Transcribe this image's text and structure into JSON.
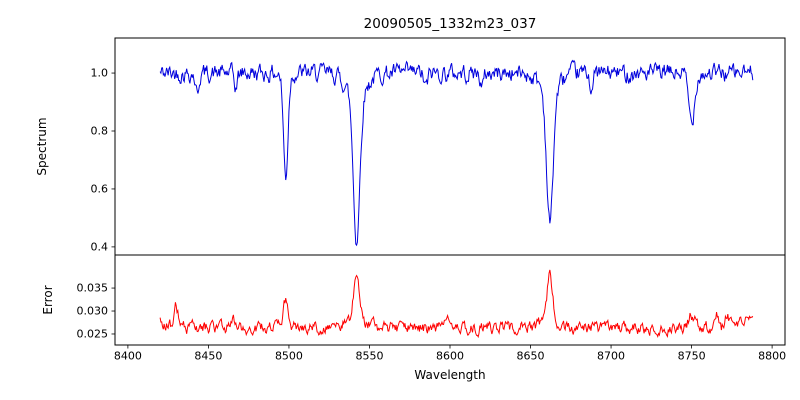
{
  "title": "20090505_1332m23_037",
  "chart_data": {
    "type": "line",
    "title": "20090505_1332m23_037",
    "xlabel": "Wavelength",
    "legend": "none",
    "grid": false,
    "xlim": [
      8392,
      8808
    ],
    "xticks": [
      8400,
      8450,
      8500,
      8550,
      8600,
      8650,
      8700,
      8750,
      8800
    ],
    "x_data_range": [
      8420,
      8788
    ],
    "x_step": 0.5,
    "noise_seed": 42,
    "panels": [
      {
        "name": "spectrum",
        "ylabel": "Spectrum",
        "color": "#0000dd",
        "ylim": [
          0.372,
          1.121
        ],
        "yticks": [
          0.4,
          0.6,
          0.8,
          1.0
        ],
        "ytick_labels": [
          "0.4",
          "0.6",
          "0.8",
          "1.0"
        ],
        "continuum": 1.0,
        "noise_amp": 0.055,
        "absorption_lines": [
          {
            "center": 8443,
            "depth": 0.07,
            "sigma": 1.0
          },
          {
            "center": 8467,
            "depth": 0.05,
            "sigma": 1.0
          },
          {
            "center": 8498,
            "depth": 0.36,
            "sigma": 1.4
          },
          {
            "center": 8542,
            "depth": 0.5,
            "sigma": 2.0
          },
          {
            "center": 8542,
            "depth": 0.08,
            "sigma": 6.0
          },
          {
            "center": 8585,
            "depth": 0.05,
            "sigma": 1.2
          },
          {
            "center": 8620,
            "depth": 0.05,
            "sigma": 1.0
          },
          {
            "center": 8662,
            "depth": 0.46,
            "sigma": 2.0
          },
          {
            "center": 8662,
            "depth": 0.06,
            "sigma": 6.0
          },
          {
            "center": 8688,
            "depth": 0.05,
            "sigma": 1.0
          },
          {
            "center": 8750,
            "depth": 0.17,
            "sigma": 1.8
          }
        ]
      },
      {
        "name": "error",
        "ylabel": "Error",
        "color": "#ff0000",
        "ylim": [
          0.0226,
          0.0422
        ],
        "yticks": [
          0.025,
          0.03,
          0.035
        ],
        "ytick_labels": [
          "0.025",
          "0.030",
          "0.035"
        ],
        "baseline": 0.0263,
        "noise_amp": 0.0024,
        "spikes": [
          {
            "center": 8421,
            "height": 0.0012,
            "sigma": 5.0
          },
          {
            "center": 8430,
            "height": 0.0045,
            "sigma": 1.2
          },
          {
            "center": 8465,
            "height": 0.0022,
            "sigma": 1.5
          },
          {
            "center": 8498,
            "height": 0.0058,
            "sigma": 1.4
          },
          {
            "center": 8542,
            "height": 0.0105,
            "sigma": 1.8
          },
          {
            "center": 8542,
            "height": 0.0015,
            "sigma": 7.0
          },
          {
            "center": 8600,
            "height": 0.0022,
            "sigma": 2.0
          },
          {
            "center": 8662,
            "height": 0.0098,
            "sigma": 1.8
          },
          {
            "center": 8662,
            "height": 0.0013,
            "sigma": 7.0
          },
          {
            "center": 8750,
            "height": 0.0028,
            "sigma": 2.0
          },
          {
            "center": 8765,
            "height": 0.0032,
            "sigma": 1.5
          },
          {
            "center": 8772,
            "height": 0.0025,
            "sigma": 1.2
          },
          {
            "center": 8786,
            "height": 0.0015,
            "sigma": 6.0
          }
        ]
      }
    ]
  }
}
